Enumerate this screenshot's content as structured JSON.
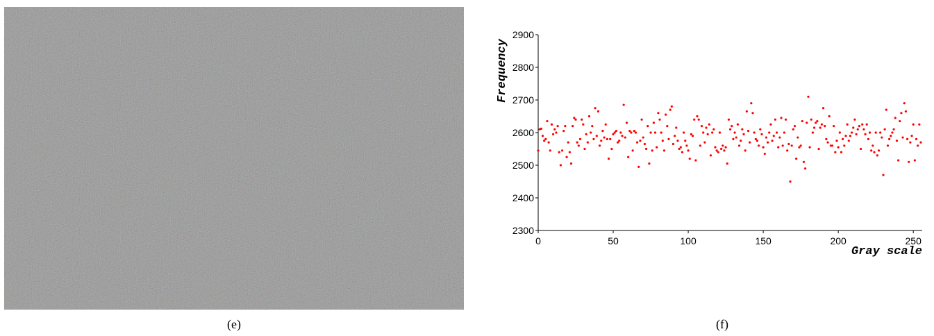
{
  "figure": {
    "captions": [
      "(e)",
      "(f)"
    ]
  },
  "chart_data": {
    "type": "scatter",
    "x_label": "Gray scale",
    "y_label": "Frequency",
    "color": "#ff0000",
    "grid": false,
    "xlim": [
      0,
      255
    ],
    "ylim": [
      2300,
      2900
    ],
    "xticks": [
      0,
      50,
      100,
      150,
      200,
      250
    ],
    "yticks": [
      2300,
      2400,
      2500,
      2600,
      2700,
      2800,
      2900
    ],
    "x": [
      0,
      1,
      2,
      3,
      4,
      5,
      6,
      7,
      8,
      9,
      10,
      11,
      12,
      13,
      14,
      15,
      16,
      17,
      18,
      19,
      20,
      21,
      22,
      23,
      24,
      25,
      26,
      27,
      28,
      29,
      30,
      31,
      32,
      33,
      34,
      35,
      36,
      37,
      38,
      39,
      40,
      41,
      42,
      43,
      44,
      45,
      46,
      47,
      48,
      49,
      50,
      51,
      52,
      53,
      54,
      55,
      56,
      57,
      58,
      59,
      60,
      61,
      62,
      63,
      64,
      65,
      66,
      67,
      68,
      69,
      70,
      71,
      72,
      73,
      74,
      75,
      76,
      77,
      78,
      79,
      80,
      81,
      82,
      83,
      84,
      85,
      86,
      87,
      88,
      89,
      90,
      91,
      92,
      93,
      94,
      95,
      96,
      97,
      98,
      99,
      100,
      101,
      102,
      103,
      104,
      105,
      106,
      107,
      108,
      109,
      110,
      111,
      112,
      113,
      114,
      115,
      116,
      117,
      118,
      119,
      120,
      121,
      122,
      123,
      124,
      125,
      126,
      127,
      128,
      129,
      130,
      131,
      132,
      133,
      134,
      135,
      136,
      137,
      138,
      139,
      140,
      141,
      142,
      143,
      144,
      145,
      146,
      147,
      148,
      149,
      150,
      151,
      152,
      153,
      154,
      155,
      156,
      157,
      158,
      159,
      160,
      161,
      162,
      163,
      164,
      165,
      166,
      167,
      168,
      169,
      170,
      171,
      172,
      173,
      174,
      175,
      176,
      177,
      178,
      179,
      180,
      181,
      182,
      183,
      184,
      185,
      186,
      187,
      188,
      189,
      190,
      191,
      192,
      193,
      194,
      195,
      196,
      197,
      198,
      199,
      200,
      201,
      202,
      203,
      204,
      205,
      206,
      207,
      208,
      209,
      210,
      211,
      212,
      213,
      214,
      215,
      216,
      217,
      218,
      219,
      220,
      221,
      222,
      223,
      224,
      225,
      226,
      227,
      228,
      229,
      230,
      231,
      232,
      233,
      234,
      235,
      236,
      237,
      238,
      239,
      240,
      241,
      242,
      243,
      244,
      245,
      246,
      247,
      248,
      249,
      250,
      251,
      252,
      253,
      254,
      255
    ],
    "values": [
      2545,
      2610,
      2612,
      2590,
      2575,
      2580,
      2635,
      2570,
      2545,
      2625,
      2595,
      2610,
      2600,
      2620,
      2540,
      2500,
      2545,
      2605,
      2620,
      2525,
      2570,
      2540,
      2505,
      2620,
      2645,
      2640,
      2570,
      2560,
      2580,
      2640,
      2625,
      2550,
      2595,
      2570,
      2650,
      2600,
      2620,
      2580,
      2675,
      2590,
      2665,
      2560,
      2575,
      2605,
      2585,
      2625,
      2580,
      2520,
      2580,
      2550,
      2595,
      2600,
      2605,
      2570,
      2575,
      2600,
      2590,
      2685,
      2585,
      2630,
      2525,
      2605,
      2600,
      2545,
      2605,
      2600,
      2570,
      2495,
      2575,
      2640,
      2585,
      2565,
      2550,
      2620,
      2505,
      2600,
      2545,
      2630,
      2600,
      2555,
      2660,
      2640,
      2600,
      2575,
      2545,
      2655,
      2620,
      2580,
      2670,
      2680,
      2565,
      2590,
      2615,
      2575,
      2550,
      2555,
      2540,
      2600,
      2575,
      2560,
      2545,
      2520,
      2595,
      2590,
      2640,
      2515,
      2650,
      2640,
      2560,
      2620,
      2600,
      2570,
      2615,
      2595,
      2625,
      2530,
      2600,
      2610,
      2555,
      2545,
      2540,
      2600,
      2550,
      2560,
      2545,
      2555,
      2505,
      2640,
      2610,
      2620,
      2580,
      2600,
      2585,
      2625,
      2560,
      2575,
      2610,
      2595,
      2545,
      2665,
      2605,
      2570,
      2690,
      2660,
      2600,
      2580,
      2575,
      2560,
      2610,
      2595,
      2555,
      2535,
      2585,
      2570,
      2600,
      2625,
      2575,
      2590,
      2640,
      2600,
      2555,
      2585,
      2645,
      2560,
      2600,
      2640,
      2545,
      2565,
      2450,
      2560,
      2610,
      2620,
      2520,
      2585,
      2555,
      2560,
      2635,
      2510,
      2490,
      2630,
      2710,
      2555,
      2640,
      2600,
      2615,
      2630,
      2635,
      2550,
      2615,
      2625,
      2675,
      2620,
      2580,
      2570,
      2650,
      2560,
      2560,
      2620,
      2540,
      2575,
      2555,
      2600,
      2540,
      2580,
      2560,
      2590,
      2625,
      2575,
      2590,
      2600,
      2615,
      2640,
      2595,
      2610,
      2620,
      2550,
      2625,
      2610,
      2595,
      2625,
      2580,
      2600,
      2545,
      2560,
      2540,
      2600,
      2530,
      2545,
      2600,
      2585,
      2470,
      2610,
      2670,
      2560,
      2580,
      2590,
      2600,
      2610,
      2645,
      2575,
      2515,
      2635,
      2660,
      2585,
      2690,
      2665,
      2580,
      2510,
      2570,
      2590,
      2625,
      2515,
      2580,
      2560,
      2625,
      2570
    ]
  }
}
